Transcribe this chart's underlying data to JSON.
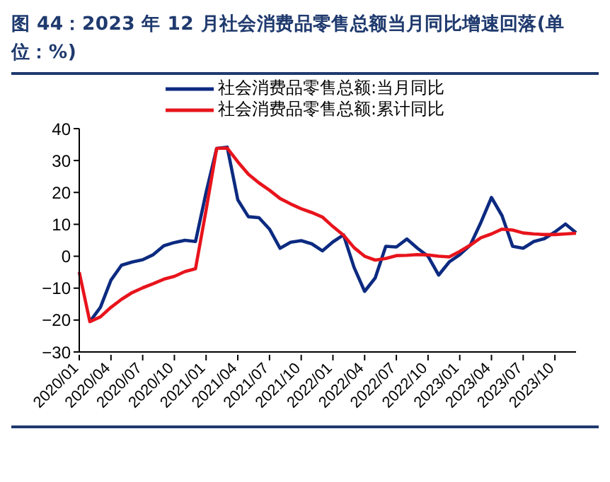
{
  "chart_data": {
    "type": "line",
    "title": "图 44：2023 年 12 月社会消费品零售总额当月同比增速回落(单位：%)",
    "categories": [
      "2020/01",
      null,
      null,
      "2020/04",
      null,
      null,
      "2020/07",
      null,
      null,
      "2020/10",
      null,
      null,
      "2021/01",
      null,
      null,
      "2021/04",
      null,
      null,
      "2021/07",
      null,
      null,
      "2021/10",
      null,
      null,
      "2022/01",
      null,
      null,
      "2022/04",
      null,
      null,
      "2022/07",
      null,
      null,
      "2022/10",
      null,
      null,
      "2023/01",
      null,
      null,
      "2023/04",
      null,
      null,
      "2023/07",
      null,
      null,
      "2023/10",
      null,
      null
    ],
    "series": [
      {
        "name": "社会消费品零售总额:当月同比",
        "color": "#0c2a80",
        "values": [
          null,
          -20.5,
          -16,
          -7.5,
          -2.8,
          -1.8,
          -1.1,
          0.5,
          3.3,
          4.3,
          5.0,
          4.6,
          20,
          33.8,
          34.2,
          17.7,
          12.4,
          12.1,
          8.5,
          2.5,
          4.4,
          4.9,
          3.9,
          1.7,
          4.5,
          6.7,
          -3.5,
          -11.0,
          -6.8,
          3.1,
          2.9,
          5.4,
          2.5,
          0,
          -5.9,
          -1.8,
          0.5,
          3.5,
          10.6,
          18.4,
          12.7,
          3.1,
          2.5,
          4.6,
          5.5,
          7.6,
          10.1,
          7.4
        ]
      },
      {
        "name": "社会消费品零售总额:累计同比",
        "color": "#e8141c",
        "values": [
          -5,
          -20.5,
          -19,
          -16,
          -13.5,
          -11.4,
          -9.9,
          -8.6,
          -7.2,
          -6.3,
          -4.8,
          -3.9,
          14.5,
          33.8,
          33.9,
          29.6,
          25.7,
          23.0,
          20.7,
          18.1,
          16.4,
          14.9,
          13.7,
          12.3,
          9.3,
          6.6,
          2.7,
          0,
          -1.2,
          -0.7,
          0.2,
          0.3,
          0.5,
          0.4,
          0,
          -0.2,
          1.5,
          3.5,
          5.8,
          7.0,
          8.5,
          8.2,
          7.3,
          7.0,
          6.8,
          6.8,
          7.0,
          7.2
        ]
      }
    ],
    "ylim": [
      -30,
      40
    ],
    "yticks": [
      -30,
      -20,
      -10,
      0,
      10,
      20,
      30,
      40
    ],
    "grid": false,
    "legend": "top",
    "marker": "none",
    "line_style": "solid"
  }
}
